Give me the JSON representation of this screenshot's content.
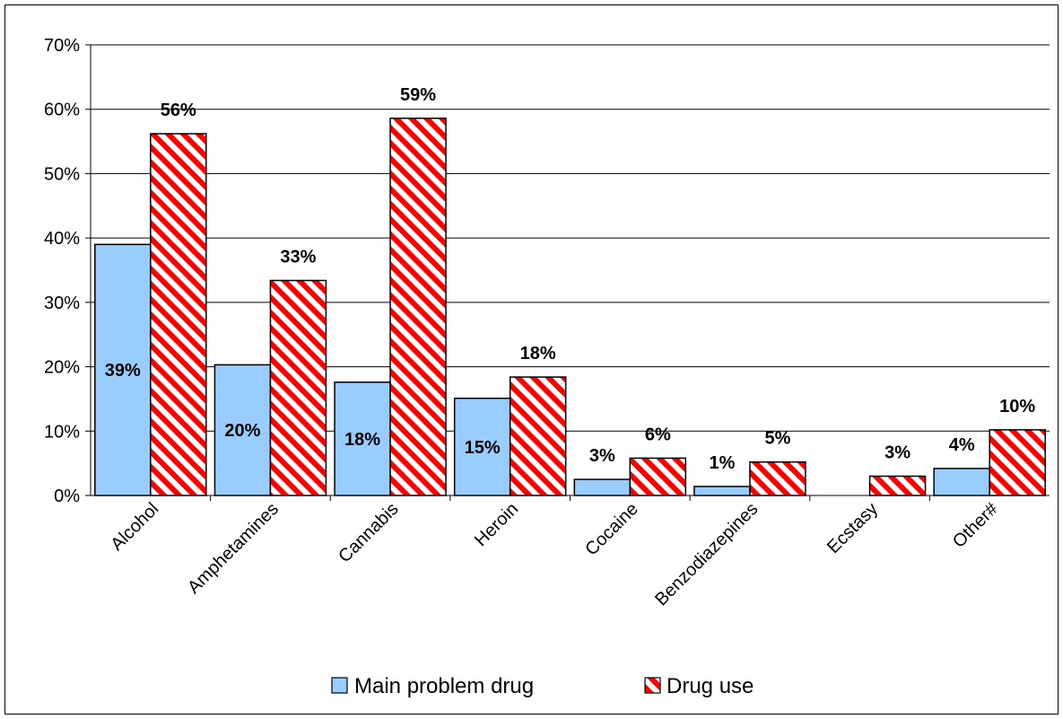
{
  "chart_data": {
    "type": "bar",
    "title": "",
    "xlabel": "",
    "ylabel": "",
    "ylim": [
      0,
      70
    ],
    "y_ticks": [
      "0%",
      "10%",
      "20%",
      "30%",
      "40%",
      "50%",
      "60%",
      "70%"
    ],
    "grid": true,
    "legend_position": "bottom",
    "categories": [
      "Alcohol",
      "Amphetamines",
      "Cannabis",
      "Heroin",
      "Cocaine",
      "Benzodiazepines",
      "Ecstasy",
      "Other#"
    ],
    "series": [
      {
        "name": "Main problem drug",
        "values": [
          39,
          20.3,
          17.6,
          15.1,
          2.5,
          1.4,
          0,
          4.2
        ],
        "labels": [
          "39%",
          "20%",
          "18%",
          "15%",
          "3%",
          "1%",
          "",
          "4%"
        ],
        "color": "#99ccff",
        "pattern": "solid"
      },
      {
        "name": "Drug use",
        "values": [
          56.2,
          33.4,
          58.6,
          18.4,
          5.8,
          5.2,
          3,
          10.2
        ],
        "labels": [
          "56%",
          "33%",
          "59%",
          "18%",
          "6%",
          "5%",
          "3%",
          "10%"
        ],
        "color": "#ff0000",
        "pattern": "diagonal-stripes"
      }
    ]
  }
}
